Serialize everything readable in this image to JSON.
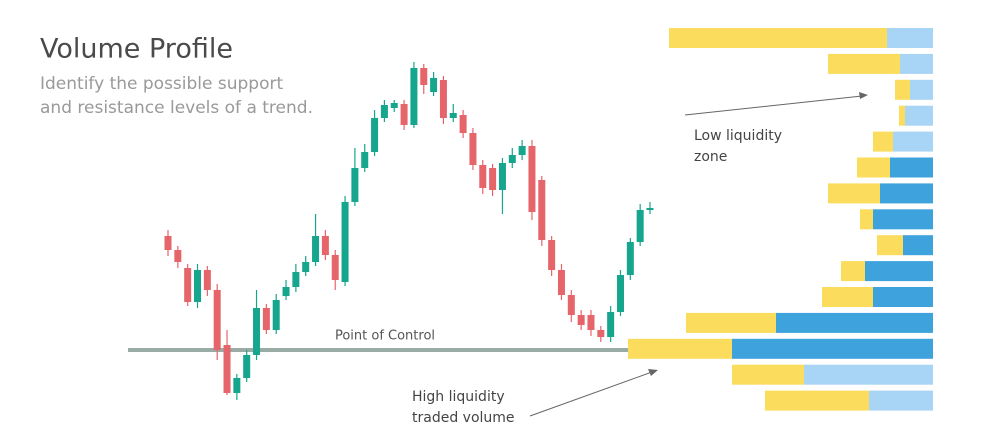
{
  "header": {
    "title": "Volume Profile",
    "subtitle": [
      "Identify the possible support",
      "and resistance levels of a trend."
    ]
  },
  "chart_data": [
    {
      "type": "candlestick",
      "ylim": [
        0,
        440
      ],
      "up_color": "#16a58d",
      "down_color": "#e5656b",
      "poc": {
        "value": 90,
        "label": "Point of Control",
        "color": "#9aaba6"
      },
      "open": [
        204,
        190,
        172,
        138,
        170,
        150,
        95,
        47,
        62,
        85,
        132,
        110,
        144,
        153,
        168,
        178,
        204,
        185,
        158,
        238,
        272,
        288,
        322,
        332,
        336,
        315,
        372,
        348,
        360,
        322,
        325,
        307,
        275,
        272,
        250,
        277,
        285,
        294,
        260,
        200,
        170,
        145,
        125,
        125,
        110,
        103,
        128,
        165,
        198,
        230
      ],
      "high": [
        210,
        194,
        176,
        176,
        174,
        156,
        110,
        66,
        90,
        150,
        136,
        146,
        160,
        176,
        184,
        226,
        210,
        190,
        244,
        292,
        296,
        330,
        340,
        340,
        340,
        378,
        376,
        368,
        364,
        336,
        330,
        312,
        280,
        276,
        282,
        292,
        300,
        300,
        264,
        204,
        176,
        150,
        130,
        130,
        114,
        134,
        170,
        202,
        236,
        238
      ],
      "low": [
        184,
        172,
        134,
        132,
        144,
        80,
        45,
        40,
        58,
        80,
        106,
        106,
        140,
        148,
        164,
        174,
        180,
        150,
        154,
        234,
        268,
        284,
        318,
        328,
        310,
        312,
        346,
        344,
        316,
        318,
        302,
        270,
        246,
        244,
        226,
        272,
        280,
        220,
        194,
        164,
        140,
        118,
        110,
        104,
        98,
        98,
        124,
        160,
        194,
        226
      ],
      "close": [
        190,
        178,
        138,
        170,
        150,
        90,
        47,
        62,
        85,
        132,
        110,
        140,
        153,
        168,
        178,
        204,
        185,
        160,
        238,
        272,
        288,
        322,
        335,
        337,
        315,
        372,
        355,
        362,
        322,
        327,
        307,
        275,
        252,
        250,
        277,
        285,
        294,
        228,
        200,
        170,
        145,
        125,
        115,
        110,
        103,
        128,
        165,
        198,
        230,
        232
      ]
    },
    {
      "type": "horizontal-stacked-bar",
      "xlim": [
        0,
        305
      ],
      "series": [
        {
          "color": "#fbdc5c",
          "values": [
            218,
            72,
            15,
            6,
            20,
            33,
            52,
            13,
            26,
            24,
            51,
            90,
            104,
            72,
            104
          ]
        },
        {
          "colors": [
            "#a8d4f5",
            "#a8d4f5",
            "#a8d4f5",
            "#a8d4f5",
            "#a8d4f5",
            "#3ea3dc",
            "#3ea3dc",
            "#3ea3dc",
            "#3ea3dc",
            "#3ea3dc",
            "#3ea3dc",
            "#3ea3dc",
            "#3ea3dc",
            "#a8d4f5",
            "#a8d4f5"
          ],
          "values": [
            46,
            33,
            23,
            28,
            40,
            43,
            53,
            60,
            30,
            68,
            60,
            157,
            201,
            129,
            64
          ]
        }
      ],
      "annotations": [
        {
          "text": [
            "Low liquidity",
            "zone"
          ]
        },
        {
          "text": [
            "High liquidity",
            "traded volume"
          ]
        }
      ]
    }
  ]
}
